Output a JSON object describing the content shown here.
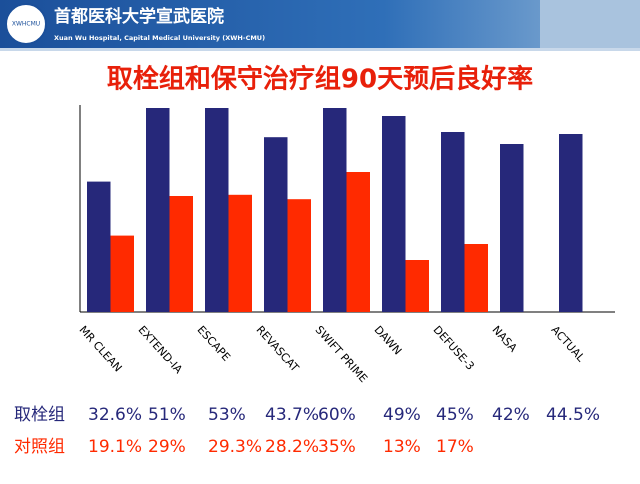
{
  "header": {
    "title": "首都医科大学宣武医院",
    "subtitle": "Xuan Wu Hospital, Capital Medical University (XWH-CMU)",
    "logo_text": "XWHCMU"
  },
  "chart_data": {
    "type": "bar",
    "title": "取栓组和保守治疗组90天预后良好率",
    "categories": [
      "MR CLEAN",
      "EXTEND-IA",
      "ESCAPE",
      "REVASCAT",
      "SWIFT PRIME",
      "DAWN",
      "DEFUSE-3",
      "NASA",
      "ACTUAL"
    ],
    "series": [
      {
        "name": "取栓组",
        "color": "#26287a",
        "values": [
          32.6,
          51,
          53,
          43.7,
          60,
          49,
          45,
          42,
          44.5
        ],
        "value_labels": [
          "32.6%",
          "51%",
          "53%",
          "43.7%",
          "60%",
          "49%",
          "45%",
          "42%",
          "44.5%"
        ]
      },
      {
        "name": "对照组",
        "color": "#ff2a00",
        "values": [
          19.1,
          29,
          29.3,
          28.2,
          35,
          13,
          17,
          null,
          null
        ],
        "value_labels": [
          "19.1%",
          "29%",
          "29.3%",
          "28.2%",
          "35%",
          "13%",
          "17%",
          null,
          null
        ]
      }
    ]
  }
}
